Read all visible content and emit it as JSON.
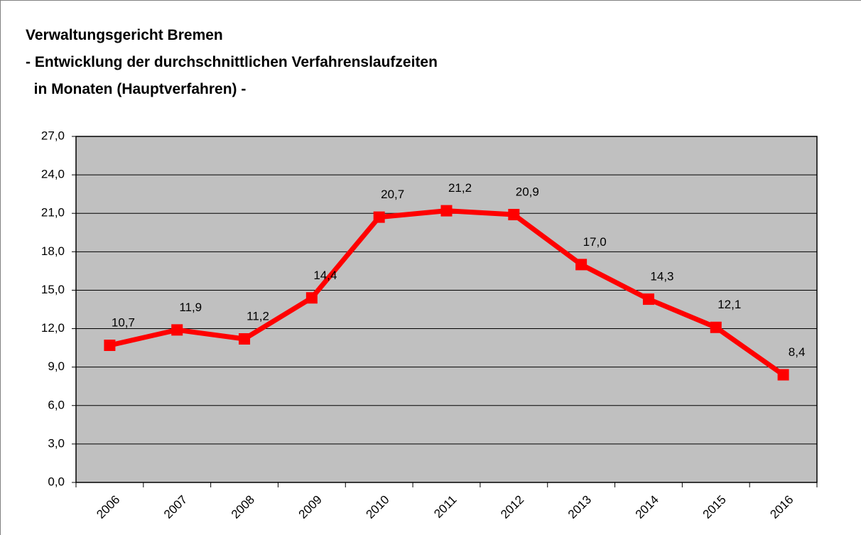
{
  "chart_data": {
    "type": "line",
    "title": [
      "Verwaltungsgericht Bremen",
      "- Entwicklung der durchschnittlichen Verfahrenslaufzeiten",
      "  in Monaten (Hauptverfahren) -"
    ],
    "categories": [
      "2006",
      "2007",
      "2008",
      "2009",
      "2010",
      "2011",
      "2012",
      "2013",
      "2014",
      "2015",
      "2016"
    ],
    "values": [
      10.7,
      11.9,
      11.2,
      14.4,
      20.7,
      21.2,
      20.9,
      17.0,
      14.3,
      12.1,
      8.4
    ],
    "value_labels": [
      "10,7",
      "11,9",
      "11,2",
      "14,4",
      "20,7",
      "21,2",
      "20,9",
      "17,0",
      "14,3",
      "12,1",
      "8,4"
    ],
    "color": "#ff0000",
    "plot_background": "#c0c0c0",
    "ylim": [
      0,
      27
    ],
    "yticks": [
      {
        "value": 0,
        "label": "0,0"
      },
      {
        "value": 3,
        "label": "3,0"
      },
      {
        "value": 6,
        "label": "6,0"
      },
      {
        "value": 9,
        "label": "9,0"
      },
      {
        "value": 12,
        "label": "12,0"
      },
      {
        "value": 15,
        "label": "15,0"
      },
      {
        "value": 18,
        "label": "18,0"
      },
      {
        "value": 21,
        "label": "21,0"
      },
      {
        "value": 24,
        "label": "24,0"
      },
      {
        "value": 27,
        "label": "27,0"
      }
    ],
    "grid": true
  }
}
